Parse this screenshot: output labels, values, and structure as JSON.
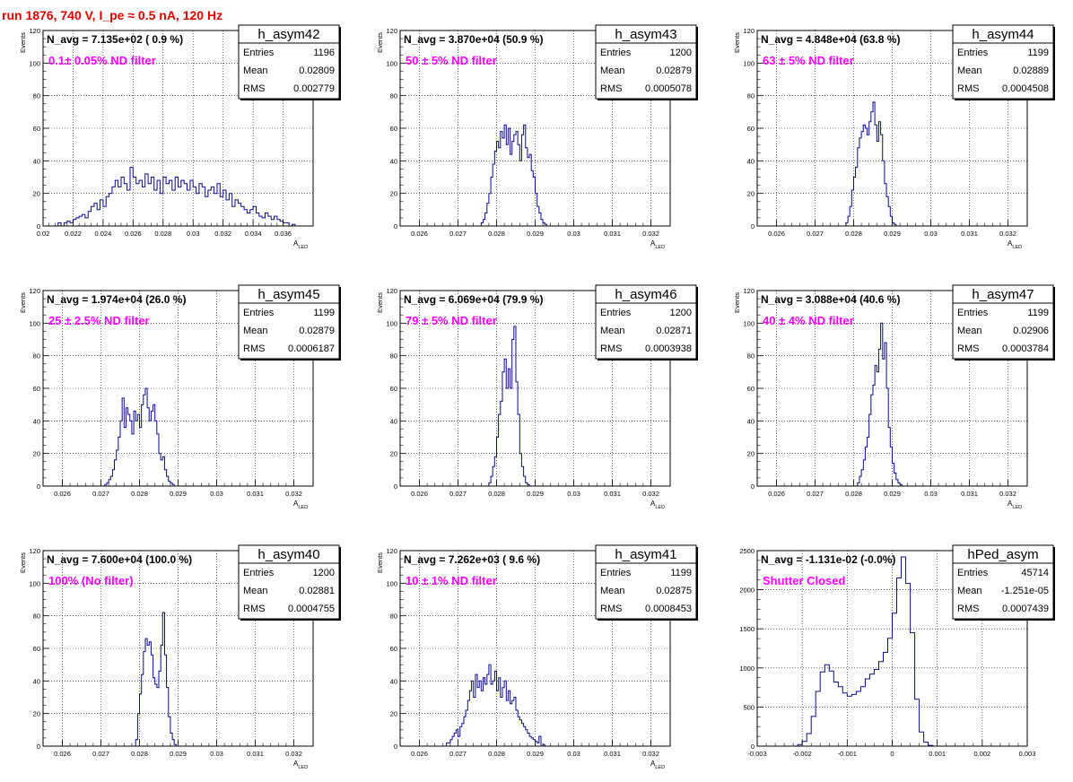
{
  "run_title": "run 1876,   740 V, I_pe ≈ 0.5 nA, 120 Hz",
  "colors": {
    "hist": "#0a0a8c",
    "label": "#ff00ff",
    "title": "#e00000",
    "grid": "#000000"
  },
  "stats_labels": {
    "entries": "Entries",
    "mean": "Mean",
    "rms": "RMS"
  },
  "chart_data": [
    {
      "type": "bar",
      "name": "h_asym42",
      "navg": "N_avg = 7.135e+02 ( 0.9 %)",
      "label": "0.1± 0.05% ND filter",
      "entries": "1196",
      "mean": "0.02809",
      "rms": "0.002779",
      "xlabel": "A_LED",
      "ylabel": "Events",
      "xlim": [
        0.02,
        0.038
      ],
      "ylim": [
        0,
        120
      ],
      "xticks": [
        0.02,
        0.022,
        0.024,
        0.026,
        0.028,
        0.03,
        0.032,
        0.034,
        0.036
      ],
      "xticklabels": [
        "0.02",
        "0.022",
        "0.024",
        "0.026",
        "0.028",
        "0.03",
        "0.032",
        "0.034",
        "0.036"
      ],
      "yticks": [
        0,
        20,
        40,
        60,
        80,
        100,
        120
      ],
      "grid": true,
      "bin_start": 0.021,
      "bin_width": 0.0002,
      "values": [
        2,
        0,
        2,
        3,
        2,
        4,
        5,
        6,
        7,
        5,
        9,
        12,
        14,
        10,
        16,
        12,
        18,
        20,
        24,
        28,
        24,
        30,
        26,
        22,
        36,
        30,
        26,
        28,
        24,
        32,
        26,
        30,
        22,
        28,
        20,
        30,
        26,
        28,
        22,
        30,
        24,
        28,
        26,
        22,
        28,
        24,
        20,
        26,
        24,
        18,
        22,
        24,
        20,
        26,
        18,
        22,
        16,
        20,
        12,
        16,
        14,
        12,
        10,
        8,
        10,
        12,
        8,
        6,
        5,
        8,
        6,
        4,
        6,
        4,
        3,
        2,
        2,
        0,
        1,
        0
      ]
    },
    {
      "type": "bar",
      "name": "h_asym43",
      "navg": "N_avg = 3.870e+04 (50.9 %)",
      "label": "50 ± 5% ND filter",
      "entries": "1200",
      "mean": "0.02879",
      "rms": "0.0005078",
      "xlabel": "A_LED",
      "ylabel": "Events",
      "xlim": [
        0.0255,
        0.0325
      ],
      "ylim": [
        0,
        120
      ],
      "xticks": [
        0.026,
        0.027,
        0.028,
        0.029,
        0.03,
        0.031,
        0.032
      ],
      "xticklabels": [
        "0.026",
        "0.027",
        "0.028",
        "0.029",
        "0.03",
        "0.031",
        "0.032"
      ],
      "yticks": [
        0,
        20,
        40,
        60,
        80,
        100,
        120
      ],
      "grid": true,
      "bin_start": 0.0276,
      "bin_width": 5e-05,
      "values": [
        2,
        4,
        8,
        14,
        20,
        30,
        38,
        46,
        52,
        48,
        58,
        54,
        62,
        50,
        60,
        44,
        52,
        56,
        58,
        50,
        40,
        56,
        62,
        48,
        42,
        44,
        34,
        30,
        20,
        12,
        8,
        4,
        2,
        1
      ]
    },
    {
      "type": "bar",
      "name": "h_asym44",
      "navg": "N_avg = 4.848e+04 (63.8 %)",
      "label": "63 ± 5% ND filter",
      "entries": "1199",
      "mean": "0.02889",
      "rms": "0.0004508",
      "xlabel": "A_LED",
      "ylabel": "Events",
      "xlim": [
        0.0255,
        0.0325
      ],
      "ylim": [
        0,
        120
      ],
      "xticks": [
        0.026,
        0.027,
        0.028,
        0.029,
        0.03,
        0.031,
        0.032
      ],
      "xticklabels": [
        "0.026",
        "0.027",
        "0.028",
        "0.029",
        "0.03",
        "0.031",
        "0.032"
      ],
      "yticks": [
        0,
        20,
        40,
        60,
        80,
        100,
        120
      ],
      "grid": true,
      "bin_start": 0.0278,
      "bin_width": 5e-05,
      "values": [
        2,
        6,
        12,
        22,
        30,
        36,
        48,
        54,
        58,
        62,
        60,
        56,
        64,
        70,
        76,
        62,
        52,
        64,
        56,
        40,
        26,
        18,
        12,
        6,
        2,
        1
      ]
    },
    {
      "type": "bar",
      "name": "h_asym45",
      "navg": "N_avg = 1.974e+04 (26.0 %)",
      "label": "25 ± 2.5% ND filter",
      "entries": "1199",
      "mean": "0.02879",
      "rms": "0.0006187",
      "xlabel": "A_LED",
      "ylabel": "Events",
      "xlim": [
        0.0255,
        0.0325
      ],
      "ylim": [
        0,
        120
      ],
      "xticks": [
        0.026,
        0.027,
        0.028,
        0.029,
        0.03,
        0.031,
        0.032
      ],
      "xticklabels": [
        "0.026",
        "0.027",
        "0.028",
        "0.029",
        "0.03",
        "0.031",
        "0.032"
      ],
      "yticks": [
        0,
        20,
        40,
        60,
        80,
        100,
        120
      ],
      "grid": true,
      "bin_start": 0.0271,
      "bin_width": 5e-05,
      "values": [
        1,
        2,
        4,
        6,
        10,
        16,
        22,
        30,
        40,
        54,
        36,
        48,
        44,
        40,
        32,
        46,
        40,
        44,
        36,
        50,
        56,
        60,
        48,
        40,
        46,
        50,
        40,
        32,
        20,
        16,
        18,
        10,
        6,
        3,
        2,
        1
      ]
    },
    {
      "type": "bar",
      "name": "h_asym46",
      "navg": "N_avg = 6.069e+04 (79.9 %)",
      "label": "79 ± 5% ND filter",
      "entries": "1200",
      "mean": "0.02871",
      "rms": "0.0003938",
      "xlabel": "A_LED",
      "ylabel": "Events",
      "xlim": [
        0.0255,
        0.0325
      ],
      "ylim": [
        0,
        120
      ],
      "xticks": [
        0.026,
        0.027,
        0.028,
        0.029,
        0.03,
        0.031,
        0.032
      ],
      "xticklabels": [
        "0.026",
        "0.027",
        "0.028",
        "0.029",
        "0.03",
        "0.031",
        "0.032"
      ],
      "yticks": [
        0,
        20,
        40,
        60,
        80,
        100,
        120
      ],
      "grid": true,
      "bin_start": 0.0278,
      "bin_width": 5e-05,
      "values": [
        2,
        6,
        12,
        18,
        30,
        44,
        52,
        70,
        78,
        60,
        72,
        60,
        90,
        98,
        64,
        44,
        20,
        12,
        6,
        2,
        1
      ]
    },
    {
      "type": "bar",
      "name": "h_asym47",
      "navg": "N_avg = 3.088e+04 (40.6 %)",
      "label": "40 ± 4% ND filter",
      "entries": "1199",
      "mean": "0.02906",
      "rms": "0.0003784",
      "xlabel": "A_LED",
      "ylabel": "Events",
      "xlim": [
        0.0255,
        0.0325
      ],
      "ylim": [
        0,
        120
      ],
      "xticks": [
        0.026,
        0.027,
        0.028,
        0.029,
        0.03,
        0.031,
        0.032
      ],
      "xticklabels": [
        "0.026",
        "0.027",
        "0.028",
        "0.029",
        "0.03",
        "0.031",
        "0.032"
      ],
      "yticks": [
        0,
        20,
        40,
        60,
        80,
        100,
        120
      ],
      "grid": true,
      "bin_start": 0.0281,
      "bin_width": 5e-05,
      "values": [
        2,
        6,
        10,
        16,
        24,
        30,
        44,
        56,
        62,
        74,
        70,
        84,
        100,
        78,
        88,
        60,
        36,
        24,
        14,
        8,
        4,
        2,
        1
      ]
    },
    {
      "type": "bar",
      "name": "h_asym40",
      "navg": "N_avg = 7.600e+04 (100.0 %)",
      "label": "100% (No filter)",
      "entries": "1200",
      "mean": "0.02881",
      "rms": "0.0004755",
      "xlabel": "A_LED",
      "ylabel": "Events",
      "xlim": [
        0.0255,
        0.0325
      ],
      "ylim": [
        0,
        120
      ],
      "xticks": [
        0.026,
        0.027,
        0.028,
        0.029,
        0.03,
        0.031,
        0.032
      ],
      "xticklabels": [
        "0.026",
        "0.027",
        "0.028",
        "0.029",
        "0.03",
        "0.031",
        "0.032"
      ],
      "yticks": [
        0,
        20,
        40,
        60,
        80,
        100,
        120
      ],
      "grid": true,
      "bin_start": 0.0279,
      "bin_width": 5e-05,
      "values": [
        4,
        20,
        32,
        44,
        58,
        66,
        62,
        64,
        56,
        42,
        38,
        36,
        46,
        62,
        82,
        56,
        36,
        18,
        8,
        4,
        1
      ]
    },
    {
      "type": "bar",
      "name": "h_asym41",
      "navg": "N_avg = 7.262e+03 ( 9.6 %)",
      "label": "10 ± 1% ND filter",
      "entries": "1199",
      "mean": "0.02875",
      "rms": "0.0008453",
      "xlabel": "A_LED",
      "ylabel": "Events",
      "xlim": [
        0.0255,
        0.0325
      ],
      "ylim": [
        0,
        120
      ],
      "xticks": [
        0.026,
        0.027,
        0.028,
        0.029,
        0.03,
        0.031,
        0.032
      ],
      "xticklabels": [
        "0.026",
        "0.027",
        "0.028",
        "0.029",
        "0.03",
        "0.031",
        "0.032"
      ],
      "yticks": [
        0,
        20,
        40,
        60,
        80,
        100,
        120
      ],
      "grid": true,
      "bin_start": 0.0267,
      "bin_width": 5e-05,
      "values": [
        2,
        2,
        4,
        6,
        8,
        10,
        6,
        12,
        14,
        18,
        22,
        28,
        34,
        40,
        30,
        44,
        36,
        40,
        34,
        42,
        38,
        44,
        50,
        38,
        40,
        46,
        34,
        42,
        30,
        36,
        40,
        28,
        34,
        26,
        28,
        30,
        22,
        18,
        16,
        14,
        12,
        10,
        8,
        6,
        5,
        4,
        3,
        2,
        6,
        0,
        1
      ]
    },
    {
      "type": "bar",
      "name": "hPed_asym",
      "navg": "N_avg = -1.131e-02 (-0.0%)",
      "label": "Shutter Closed",
      "entries": "45714",
      "mean": "-1.251e-05",
      "rms": "0.0007439",
      "xlabel": "",
      "ylabel": "",
      "xlim": [
        -0.003,
        0.003
      ],
      "ylim": [
        0,
        2500
      ],
      "xticks": [
        -0.003,
        -0.002,
        -0.001,
        0,
        0.001,
        0.002,
        0.003
      ],
      "xticklabels": [
        "-0.003",
        "-0.002",
        "-0.001",
        "0",
        "0.001",
        "0.002",
        "0.003"
      ],
      "yticks": [
        0,
        500,
        1000,
        1500,
        2000,
        2500
      ],
      "yticklabels": [
        "0",
        "500",
        "1000",
        "1500",
        "2000",
        "2500"
      ],
      "grid": true,
      "bin_start": -0.0021,
      "bin_width": 0.0001,
      "values": [
        20,
        60,
        160,
        380,
        700,
        950,
        1040,
        960,
        820,
        760,
        680,
        640,
        660,
        700,
        760,
        860,
        920,
        980,
        1080,
        1200,
        1380,
        1700,
        2150,
        2420,
        2080,
        1450,
        600,
        180,
        50,
        10
      ]
    }
  ]
}
